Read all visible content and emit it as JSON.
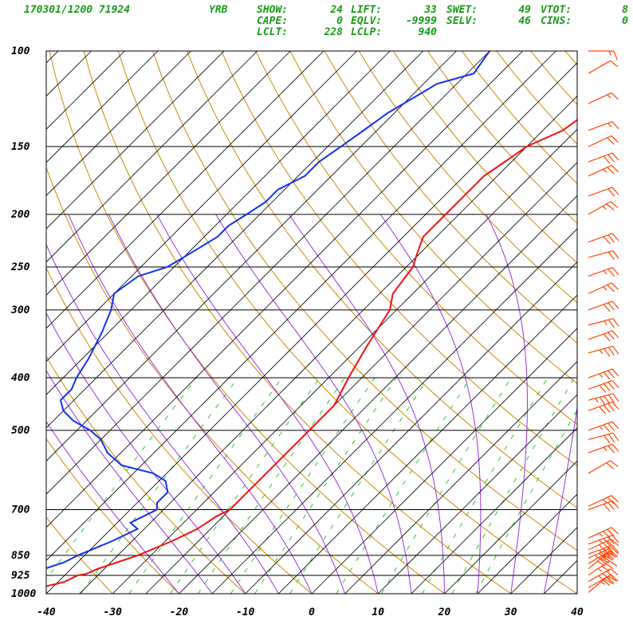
{
  "header": {
    "station_line": "170301/1200 71924",
    "station_id": "YRB",
    "indices": [
      {
        "label": "SHOW:",
        "value": "24"
      },
      {
        "label": "LIFT:",
        "value": "33"
      },
      {
        "label": "SWET:",
        "value": "49"
      },
      {
        "label": "VTOT:",
        "value": "8"
      },
      {
        "label": "CAPE:",
        "value": "0"
      },
      {
        "label": "EQLV:",
        "value": "-9999"
      },
      {
        "label": "SELV:",
        "value": "46"
      },
      {
        "label": "CINS:",
        "value": "0"
      },
      {
        "label": "LCLT:",
        "value": "228"
      },
      {
        "label": "LCLP:",
        "value": "940"
      }
    ]
  },
  "colors": {
    "temperature": "#ee1111",
    "dewpoint": "#1133ee",
    "isotherm": "#000000",
    "dry_adiabat": "#cc8800",
    "moist_adiabat": "#9933dd",
    "mixing_ratio": "#22cc22",
    "wind_barb": "#ff4400",
    "header_text": "#1a9a1a"
  },
  "chart_data": {
    "type": "line",
    "diagram": "skew-T log-P",
    "xlim": [
      -40,
      40
    ],
    "ylim": [
      1000,
      100
    ],
    "y_scale": "log",
    "x_ticks": [
      "-40",
      "-30",
      "-20",
      "-10",
      "0",
      "10",
      "20",
      "30",
      "40"
    ],
    "y_ticks": [
      "100",
      "150",
      "200",
      "250",
      "300",
      "400",
      "500",
      "700",
      "850",
      "925",
      "1000"
    ],
    "series": [
      {
        "key": "temperature",
        "pressure": [
          1000,
          990,
          975,
          960,
          950,
          925,
          920,
          900,
          875,
          850,
          800,
          760,
          720,
          700,
          650,
          600,
          550,
          500,
          470,
          450,
          400,
          350,
          300,
          280,
          250,
          240,
          230,
          220,
          200,
          190,
          180,
          170,
          160,
          150,
          140,
          130,
          120,
          110
        ],
        "temp": [
          -48,
          -45,
          -42,
          -40,
          -39,
          -38,
          -37,
          -36,
          -34,
          -32,
          -29,
          -27,
          -26,
          -25,
          -25,
          -25,
          -25,
          -25,
          -25,
          -25,
          -27,
          -29,
          -31,
          -33,
          -34,
          -35,
          -36,
          -37,
          -37,
          -37,
          -37,
          -37,
          -36,
          -35,
          -32,
          -31,
          -30,
          -30
        ]
      },
      {
        "key": "dewpoint",
        "pressure": [
          1000,
          975,
          960,
          950,
          925,
          920,
          900,
          875,
          850,
          800,
          760,
          740,
          720,
          700,
          680,
          650,
          620,
          600,
          580,
          550,
          520,
          500,
          480,
          460,
          440,
          420,
          400,
          370,
          330,
          300,
          280,
          260,
          250,
          240,
          230,
          220,
          210,
          200,
          190,
          180,
          170,
          160,
          150,
          140,
          130,
          120,
          115,
          110,
          100
        ],
        "temp": [
          -49,
          -47,
          -46,
          -45,
          -44,
          -44,
          -44,
          -42,
          -41,
          -38,
          -36,
          -38,
          -37,
          -36,
          -37,
          -37,
          -39,
          -42,
          -48,
          -52,
          -55,
          -58,
          -62,
          -65,
          -67,
          -67,
          -68,
          -69,
          -71,
          -73,
          -75,
          -74,
          -71,
          -70,
          -69,
          -68,
          -68,
          -67,
          -66,
          -66,
          -64,
          -64,
          -63,
          -62,
          -61,
          -59,
          -58,
          -54,
          -55
        ]
      }
    ],
    "winds": [
      {
        "p": 995,
        "dir": 230,
        "spd": 25
      },
      {
        "p": 975,
        "dir": 240,
        "spd": 30
      },
      {
        "p": 950,
        "dir": 240,
        "spd": 35
      },
      {
        "p": 925,
        "dir": 235,
        "spd": 35
      },
      {
        "p": 900,
        "dir": 230,
        "spd": 40
      },
      {
        "p": 880,
        "dir": 240,
        "spd": 40
      },
      {
        "p": 860,
        "dir": 245,
        "spd": 45
      },
      {
        "p": 845,
        "dir": 250,
        "spd": 40
      },
      {
        "p": 830,
        "dir": 245,
        "spd": 40
      },
      {
        "p": 810,
        "dir": 250,
        "spd": 35
      },
      {
        "p": 790,
        "dir": 245,
        "spd": 35
      },
      {
        "p": 700,
        "dir": 250,
        "spd": 30
      },
      {
        "p": 690,
        "dir": 245,
        "spd": 25
      },
      {
        "p": 600,
        "dir": 240,
        "spd": 20
      },
      {
        "p": 550,
        "dir": 250,
        "spd": 25
      },
      {
        "p": 520,
        "dir": 255,
        "spd": 30
      },
      {
        "p": 500,
        "dir": 250,
        "spd": 35
      },
      {
        "p": 460,
        "dir": 250,
        "spd": 40
      },
      {
        "p": 440,
        "dir": 255,
        "spd": 45
      },
      {
        "p": 420,
        "dir": 250,
        "spd": 40
      },
      {
        "p": 400,
        "dir": 250,
        "spd": 35
      },
      {
        "p": 360,
        "dir": 255,
        "spd": 35
      },
      {
        "p": 340,
        "dir": 250,
        "spd": 30
      },
      {
        "p": 320,
        "dir": 255,
        "spd": 25
      },
      {
        "p": 300,
        "dir": 250,
        "spd": 30
      },
      {
        "p": 280,
        "dir": 245,
        "spd": 25
      },
      {
        "p": 260,
        "dir": 250,
        "spd": 25
      },
      {
        "p": 240,
        "dir": 255,
        "spd": 20
      },
      {
        "p": 225,
        "dir": 250,
        "spd": 30
      },
      {
        "p": 200,
        "dir": 240,
        "spd": 25
      },
      {
        "p": 185,
        "dir": 250,
        "spd": 20
      },
      {
        "p": 170,
        "dir": 245,
        "spd": 25
      },
      {
        "p": 160,
        "dir": 250,
        "spd": 30
      },
      {
        "p": 150,
        "dir": 245,
        "spd": 20
      },
      {
        "p": 140,
        "dir": 250,
        "spd": 15
      },
      {
        "p": 125,
        "dir": 245,
        "spd": 15
      },
      {
        "p": 110,
        "dir": 240,
        "spd": 10
      },
      {
        "p": 100,
        "dir": 270,
        "spd": 15
      }
    ]
  }
}
